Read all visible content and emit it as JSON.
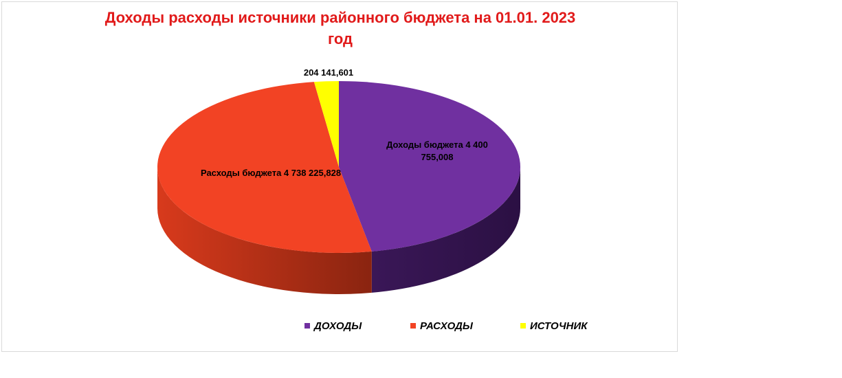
{
  "chart_data": {
    "type": "pie",
    "title_lines": [
      "Доходы расходы источники  районного бюджета на 01.01. 2023",
      "год"
    ],
    "slices": [
      {
        "name": "ДОХОДЫ",
        "value": 4400755.008,
        "label_line1": "Доходы бюджета 4 400",
        "label_line2": "755,008",
        "color": "#7030a0",
        "side_color": "#3b1858"
      },
      {
        "name": "РАСХОДЫ",
        "value": 4738225.828,
        "label_line1": "Расходы бюджета 4 738 225,828",
        "label_line2": "",
        "color": "#f24324",
        "side_color": "#b32a10"
      },
      {
        "name": "ИСТОЧНИК",
        "value": 204141.601,
        "label_line1": "204 141,601",
        "label_line2": "",
        "color": "#ffff00",
        "side_color": "#c8c800"
      }
    ],
    "legend_position": "bottom",
    "three_d": true
  }
}
